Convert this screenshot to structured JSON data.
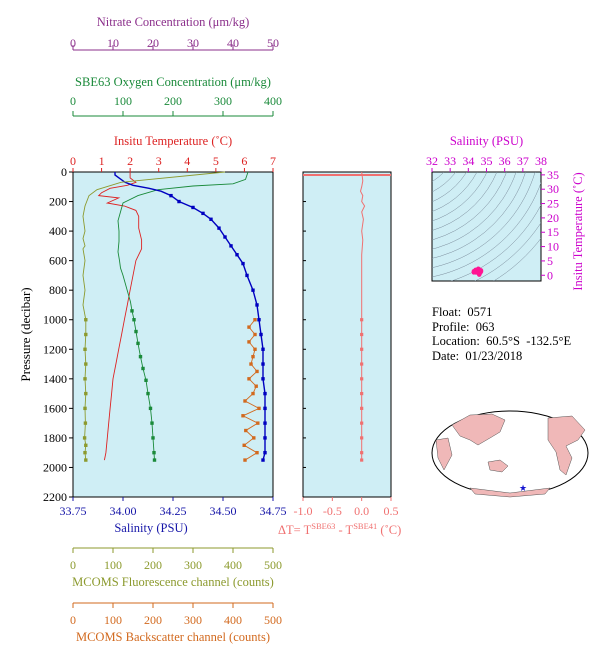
{
  "colors": {
    "nitrate": "#8b2f8b",
    "oxygen": "#1a8a3a",
    "temperature": "#dd2222",
    "salinity_axis": "#1515a8",
    "salinity_series": "#0000c0",
    "fluorescence": "#8c9a2e",
    "backscatter": "#d2691e",
    "delta_t": "#f07070",
    "ts_axis": "#cc00cc",
    "ts_points": "#ff1493",
    "panel_bg": "#cfeef5",
    "map_ocean": "#ffffff",
    "map_land": "#f0b8b8"
  },
  "meta": {
    "float": "Float:  0571",
    "profile": "Profile:  063",
    "location": "Location:  60.5°S  -132.5°E",
    "date": "Date:  01/23/2018"
  },
  "chart_data": [
    {
      "id": "profile",
      "type": "line",
      "ylabel": "Pressure (decibar)",
      "ylim": [
        0,
        2200
      ],
      "yticks": [
        "0",
        "200",
        "400",
        "600",
        "800",
        "1000",
        "1200",
        "1400",
        "1600",
        "1800",
        "2000",
        "2200"
      ],
      "axes": {
        "nitrate": {
          "label": "Nitrate Concentration (μm/kg)",
          "range": [
            0,
            50
          ],
          "ticks": [
            "0",
            "10",
            "20",
            "30",
            "40",
            "50"
          ]
        },
        "oxygen": {
          "label": "SBE63 Oxygen Concentration (μm/kg)",
          "range": [
            0,
            400
          ],
          "ticks": [
            "0",
            "100",
            "200",
            "300",
            "400"
          ]
        },
        "temperature": {
          "label": "Insitu Temperature (˚C)",
          "range": [
            0,
            7
          ],
          "ticks": [
            "0",
            "1",
            "2",
            "3",
            "4",
            "5",
            "6",
            "7"
          ]
        },
        "salinity": {
          "label": "Salinity (PSU)",
          "range": [
            33.75,
            34.75
          ],
          "ticks": [
            "33.75",
            "34.00",
            "34.25",
            "34.50",
            "34.75"
          ]
        },
        "fluorescence": {
          "label": "MCOMS Fluorescence channel (counts)",
          "range": [
            0,
            500
          ],
          "ticks": [
            "0",
            "100",
            "200",
            "300",
            "400",
            "500"
          ]
        },
        "backscatter": {
          "label": "MCOMS Backscatter channel (counts)",
          "range": [
            0,
            500
          ],
          "ticks": [
            "0",
            "100",
            "200",
            "300",
            "400",
            "500"
          ]
        }
      },
      "series": [
        {
          "key": "temperature",
          "points": [
            [
              2.0,
              0
            ],
            [
              2.0,
              40
            ],
            [
              2.2,
              70
            ],
            [
              1.9,
              90
            ],
            [
              1.3,
              110
            ],
            [
              1.0,
              140
            ],
            [
              0.9,
              160
            ],
            [
              1.6,
              175
            ],
            [
              1.2,
              210
            ],
            [
              1.8,
              230
            ],
            [
              2.2,
              260
            ],
            [
              2.3,
              300
            ],
            [
              2.3,
              380
            ],
            [
              2.4,
              460
            ],
            [
              2.4,
              520
            ],
            [
              2.2,
              600
            ],
            [
              2.1,
              700
            ],
            [
              2.0,
              800
            ],
            [
              1.9,
              900
            ],
            [
              1.8,
              1000
            ],
            [
              1.7,
              1100
            ],
            [
              1.6,
              1200
            ],
            [
              1.5,
              1300
            ],
            [
              1.4,
              1400
            ],
            [
              1.35,
              1500
            ],
            [
              1.3,
              1600
            ],
            [
              1.25,
              1700
            ],
            [
              1.2,
              1800
            ],
            [
              1.15,
              1900
            ],
            [
              1.1,
              1950
            ]
          ]
        },
        {
          "key": "oxygen",
          "points": [
            [
              350,
              0
            ],
            [
              345,
              50
            ],
            [
              320,
              80
            ],
            [
              240,
              95
            ],
            [
              170,
              120
            ],
            [
              130,
              160
            ],
            [
              100,
              210
            ],
            [
              95,
              270
            ],
            [
              90,
              330
            ],
            [
              92,
              400
            ],
            [
              92,
              470
            ],
            [
              90,
              540
            ],
            [
              93,
              600
            ],
            [
              95,
              650
            ],
            [
              100,
              700
            ],
            [
              105,
              760
            ],
            [
              110,
              820
            ],
            [
              115,
              880
            ],
            [
              118,
              940
            ],
            [
              122,
              1000
            ],
            [
              126,
              1080
            ],
            [
              130,
              1160
            ],
            [
              135,
              1250
            ],
            [
              140,
              1330
            ],
            [
              146,
              1410
            ],
            [
              150,
              1500
            ],
            [
              155,
              1600
            ],
            [
              158,
              1700
            ],
            [
              160,
              1800
            ],
            [
              162,
              1900
            ],
            [
              163,
              1950
            ]
          ]
        },
        {
          "key": "salinity",
          "points": [
            [
              33.96,
              0
            ],
            [
              33.96,
              20
            ],
            [
              33.98,
              40
            ],
            [
              34.01,
              70
            ],
            [
              34.05,
              90
            ],
            [
              34.13,
              110
            ],
            [
              34.19,
              130
            ],
            [
              34.24,
              160
            ],
            [
              34.28,
              200
            ],
            [
              34.35,
              240
            ],
            [
              34.4,
              280
            ],
            [
              34.44,
              320
            ],
            [
              34.48,
              380
            ],
            [
              34.51,
              440
            ],
            [
              34.54,
              500
            ],
            [
              34.57,
              560
            ],
            [
              34.6,
              620
            ],
            [
              34.62,
              700
            ],
            [
              34.65,
              800
            ],
            [
              34.67,
              900
            ],
            [
              34.68,
              1000
            ],
            [
              34.69,
              1100
            ],
            [
              34.7,
              1200
            ],
            [
              34.7,
              1300
            ],
            [
              34.7,
              1400
            ],
            [
              34.71,
              1500
            ],
            [
              34.71,
              1600
            ],
            [
              34.71,
              1700
            ],
            [
              34.71,
              1800
            ],
            [
              34.71,
              1900
            ],
            [
              34.7,
              1950
            ]
          ]
        },
        {
          "key": "fluorescence",
          "points": [
            [
              380,
              0
            ],
            [
              120,
              70
            ],
            [
              60,
              120
            ],
            [
              40,
              160
            ],
            [
              30,
              230
            ],
            [
              25,
              300
            ],
            [
              30,
              400
            ],
            [
              25,
              450
            ],
            [
              30,
              500
            ],
            [
              25,
              520
            ],
            [
              30,
              600
            ],
            [
              25,
              700
            ],
            [
              30,
              800
            ],
            [
              25,
              900
            ],
            [
              32,
              1000
            ],
            [
              32,
              1100
            ],
            [
              30,
              1200
            ],
            [
              32,
              1300
            ],
            [
              30,
              1400
            ],
            [
              32,
              1500
            ],
            [
              30,
              1600
            ],
            [
              31,
              1700
            ],
            [
              29,
              1800
            ],
            [
              32,
              1850
            ],
            [
              30,
              1900
            ],
            [
              32,
              1950
            ]
          ]
        },
        {
          "key": "backscatter",
          "points": [
            [
              455,
              1000
            ],
            [
              440,
              1050
            ],
            [
              455,
              1100
            ],
            [
              440,
              1150
            ],
            [
              455,
              1200
            ],
            [
              450,
              1250
            ],
            [
              445,
              1300
            ],
            [
              460,
              1350
            ],
            [
              440,
              1400
            ],
            [
              458,
              1450
            ],
            [
              450,
              1500
            ],
            [
              430,
              1550
            ],
            [
              465,
              1600
            ],
            [
              425,
              1650
            ],
            [
              462,
              1700
            ],
            [
              432,
              1750
            ],
            [
              452,
              1800
            ],
            [
              428,
              1850
            ],
            [
              460,
              1900
            ],
            [
              430,
              1950
            ]
          ]
        }
      ]
    },
    {
      "id": "delta_t",
      "type": "line",
      "xlabel": "ΔT= T",
      "xlabel_sup1": "SBE63",
      "xlabel_mid": " - T",
      "xlabel_sup2": "SBE41",
      "xlabel_end": " (˚C)",
      "xlim": [
        -1.0,
        0.5
      ],
      "xticks": [
        "-1.0",
        "-0.5",
        "0.0",
        "0.5"
      ],
      "points": [
        [
          0.0,
          0
        ],
        [
          0.02,
          60
        ],
        [
          0.0,
          100
        ],
        [
          -0.02,
          130
        ],
        [
          0.02,
          160
        ],
        [
          0.0,
          200
        ],
        [
          0.05,
          230
        ],
        [
          0.0,
          270
        ],
        [
          0.03,
          320
        ],
        [
          0.0,
          400
        ],
        [
          0.02,
          460
        ],
        [
          0.0,
          560
        ],
        [
          0.0,
          700
        ],
        [
          0.0,
          850
        ],
        [
          0.0,
          1000
        ],
        [
          0.0,
          1100
        ],
        [
          0.0,
          1200
        ],
        [
          0.0,
          1300
        ],
        [
          0.0,
          1400
        ],
        [
          0.0,
          1500
        ],
        [
          0.0,
          1600
        ],
        [
          0.0,
          1700
        ],
        [
          0.0,
          1800
        ],
        [
          0.0,
          1900
        ],
        [
          0.0,
          1950
        ]
      ]
    },
    {
      "id": "ts",
      "type": "scatter",
      "xlabel": "Salinity (PSU)",
      "ylabel": "Insitu Temperature (˚C)",
      "xlim": [
        32,
        38
      ],
      "ylim": [
        -2,
        36
      ],
      "xticks": [
        "32",
        "33",
        "34",
        "35",
        "36",
        "37",
        "38"
      ],
      "yticks": [
        "0",
        "5",
        "10",
        "15",
        "20",
        "25",
        "30",
        "35"
      ],
      "points": [
        [
          34.3,
          1.4
        ],
        [
          34.4,
          1.9
        ],
        [
          34.5,
          1.6
        ],
        [
          34.6,
          2.0
        ],
        [
          34.7,
          1.3
        ],
        [
          34.65,
          0.8
        ],
        [
          34.6,
          0.2
        ],
        [
          34.4,
          1.0
        ],
        [
          34.55,
          2.3
        ],
        [
          34.7,
          1.7
        ],
        [
          34.3,
          1.0
        ],
        [
          34.5,
          0.9
        ]
      ]
    }
  ]
}
